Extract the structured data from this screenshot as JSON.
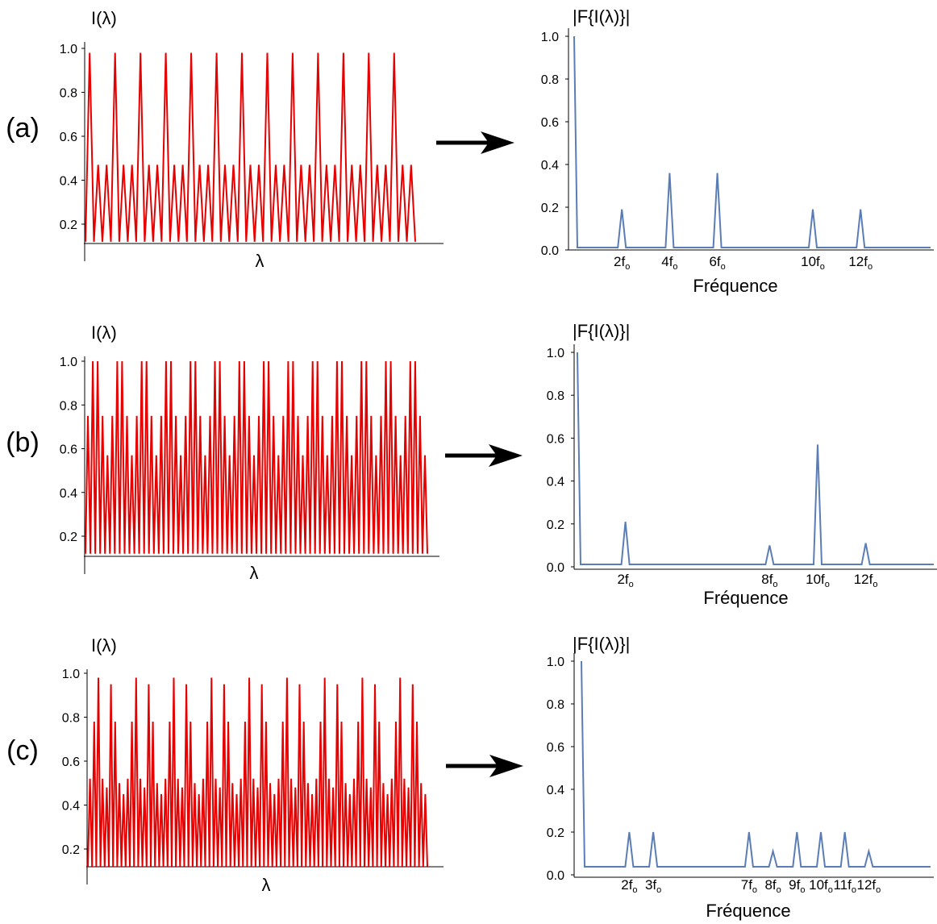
{
  "colors": {
    "signal": "#e60000",
    "spectrum": "#5b7db5",
    "axis": "#000000"
  },
  "chart_data": [
    {
      "panel": "(a)",
      "type": "line",
      "ylabel": "I(λ)",
      "xlabel": "λ",
      "yticks": [
        "0.2",
        "0.4",
        "0.6",
        "0.8",
        "1.0"
      ],
      "ylim": [
        0.12,
        1.02
      ],
      "series": [
        {
          "peaks_per_period": [
            0.98,
            0.47,
            0.47
          ],
          "min": 0.12,
          "periods": 13
        }
      ]
    },
    {
      "panel": "(a)",
      "type": "line",
      "ylabel": "|F{I(λ)}|",
      "xlabel": "Fréquence",
      "yticks": [
        "0.0",
        "0.2",
        "0.4",
        "0.6",
        "0.8",
        "1.0"
      ],
      "ylim": [
        0,
        1.05
      ],
      "xticks": [
        {
          "base": "2f",
          "sub": "o",
          "f": 2
        },
        {
          "base": "4f",
          "sub": "o",
          "f": 4
        },
        {
          "base": "6f",
          "sub": "o",
          "f": 6
        },
        {
          "base": "10f",
          "sub": "o",
          "f": 10
        },
        {
          "base": "12f",
          "sub": "o",
          "f": 12
        }
      ],
      "x": [
        0,
        2,
        4,
        6,
        10,
        12
      ],
      "values": [
        1.0,
        0.19,
        0.36,
        0.36,
        0.19,
        0.19
      ]
    },
    {
      "panel": "(b)",
      "type": "line",
      "ylabel": "I(λ)",
      "xlabel": "λ",
      "yticks": [
        "0.2",
        "0.4",
        "0.6",
        "0.8",
        "1.0"
      ],
      "ylim": [
        0.12,
        1.02
      ],
      "series": [
        {
          "peaks_per_period": [
            0.75,
            1.0,
            1.0,
            0.75,
            0.57
          ],
          "min": 0.12,
          "periods": 14
        }
      ]
    },
    {
      "panel": "(b)",
      "type": "line",
      "ylabel": "|F{I(λ)}|",
      "xlabel": "Fréquence",
      "yticks": [
        "0.0",
        "0.2",
        "0.4",
        "0.6",
        "0.8",
        "1.0"
      ],
      "ylim": [
        0,
        1.05
      ],
      "xticks": [
        {
          "base": "2f",
          "sub": "o",
          "f": 2
        },
        {
          "base": "8f",
          "sub": "o",
          "f": 8
        },
        {
          "base": "10f",
          "sub": "o",
          "f": 10
        },
        {
          "base": "12f",
          "sub": "o",
          "f": 12
        }
      ],
      "x": [
        0,
        2,
        8,
        10,
        12
      ],
      "values": [
        1.0,
        0.21,
        0.1,
        0.57,
        0.11
      ]
    },
    {
      "panel": "(c)",
      "type": "line",
      "ylabel": "I(λ)",
      "xlabel": "λ",
      "yticks": [
        "0.2",
        "0.4",
        "0.6",
        "0.8",
        "1.0"
      ],
      "ylim": [
        0.12,
        1.02
      ],
      "series": [
        {
          "peaks_per_period": [
            0.52,
            0.78,
            0.98,
            0.52,
            0.48,
            0.95,
            0.78,
            0.5,
            0.45
          ],
          "min": 0.12,
          "periods": 9
        }
      ]
    },
    {
      "panel": "(c)",
      "type": "line",
      "ylabel": "|F{I(λ)}|",
      "xlabel": "Fréquence",
      "yticks": [
        "0.0",
        "0.2",
        "0.4",
        "0.6",
        "0.8",
        "1.0"
      ],
      "ylim": [
        0,
        1.05
      ],
      "xticks": [
        {
          "base": "2f",
          "sub": "o",
          "f": 2
        },
        {
          "base": "3f",
          "sub": "o",
          "f": 3
        },
        {
          "base": "7f",
          "sub": "o",
          "f": 7
        },
        {
          "base": "8f",
          "sub": "o",
          "f": 8
        },
        {
          "base": "9f",
          "sub": "o",
          "f": 9
        },
        {
          "base": "10f",
          "sub": "o",
          "f": 10
        },
        {
          "base": "11f",
          "sub": "o",
          "f": 11
        },
        {
          "base": "12f",
          "sub": "o",
          "f": 12
        }
      ],
      "x": [
        0,
        2,
        3,
        7,
        8,
        9,
        10,
        11,
        12
      ],
      "values": [
        1.0,
        0.2,
        0.2,
        0.2,
        0.11,
        0.2,
        0.2,
        0.2,
        0.11
      ]
    }
  ]
}
